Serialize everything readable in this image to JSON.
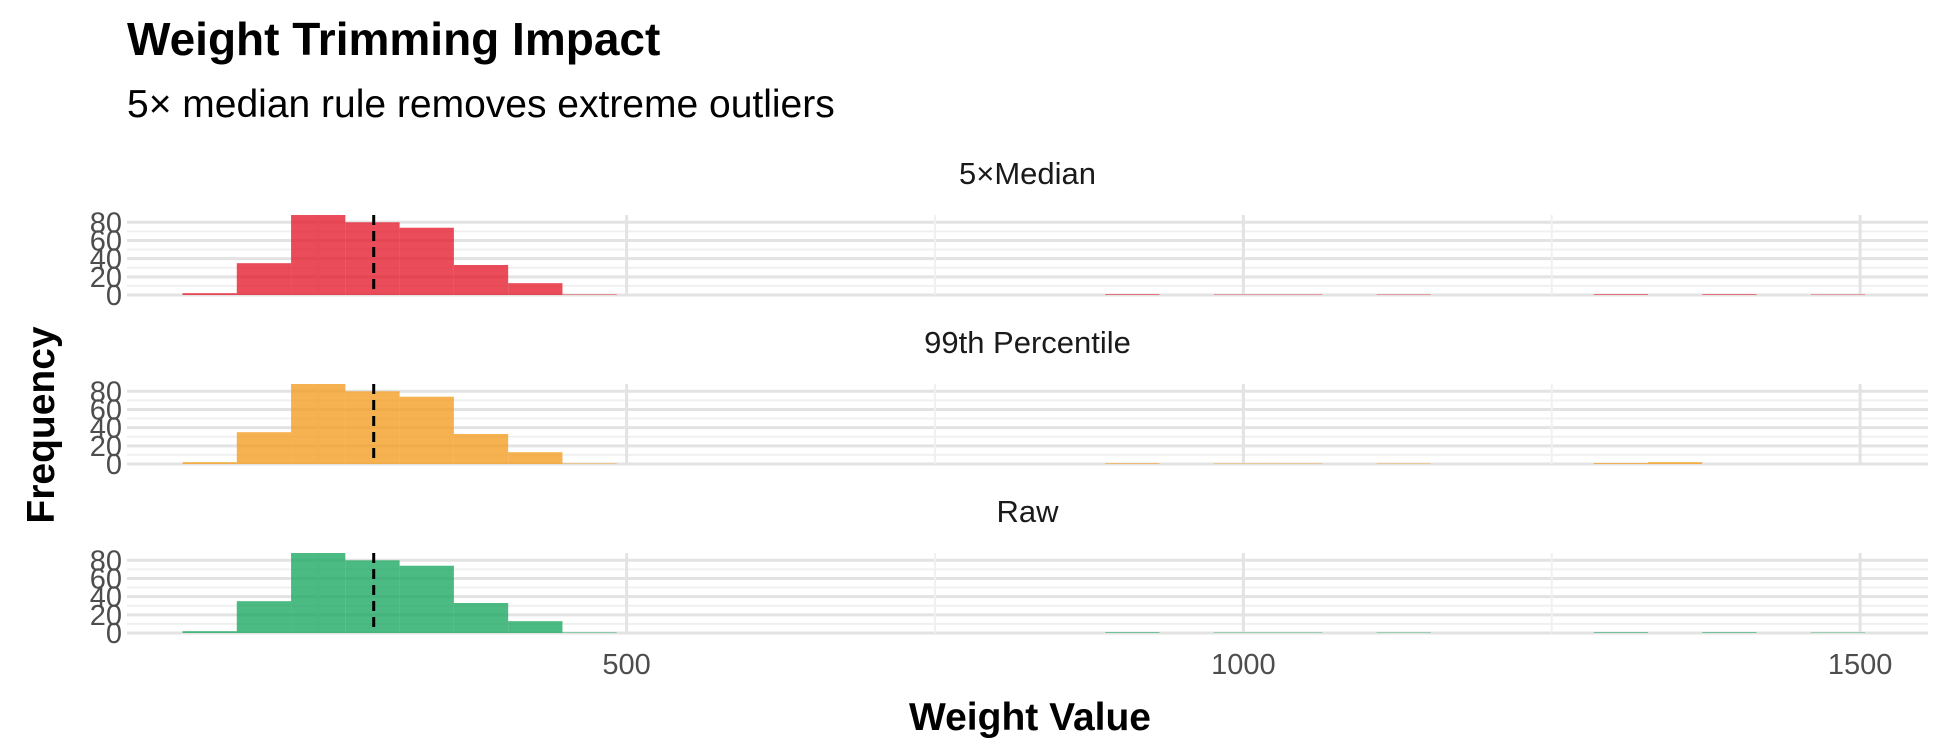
{
  "chart_data": {
    "type": "bar",
    "title": "Weight Trimming Impact",
    "subtitle": "5× median rule removes extreme outliers",
    "xlabel": "Weight Value",
    "ylabel": "Frequency",
    "xlim": [
      95,
      1555
    ],
    "ylim": [
      0,
      88
    ],
    "x_ticks": [
      "500",
      "1000",
      "1500"
    ],
    "x_tick_values": [
      500,
      1000,
      1500
    ],
    "y_ticks": [
      "0",
      "20",
      "40",
      "60",
      "80"
    ],
    "y_tick_values": [
      0,
      20,
      40,
      60,
      80
    ],
    "bin_width": 44,
    "reference_line": {
      "style": "dashed",
      "x": 295
    },
    "facets": [
      {
        "label": "5×Median",
        "color": "#e41a2c",
        "bins": [
          {
            "x": 140,
            "y": 2
          },
          {
            "x": 184,
            "y": 35
          },
          {
            "x": 228,
            "y": 88
          },
          {
            "x": 272,
            "y": 80
          },
          {
            "x": 316,
            "y": 74
          },
          {
            "x": 360,
            "y": 33
          },
          {
            "x": 404,
            "y": 13
          },
          {
            "x": 448,
            "y": 0.6
          },
          {
            "x": 888,
            "y": 0.8
          },
          {
            "x": 976,
            "y": 0.5
          },
          {
            "x": 1020,
            "y": 0.5
          },
          {
            "x": 1108,
            "y": 0.5
          },
          {
            "x": 1284,
            "y": 0.8
          },
          {
            "x": 1372,
            "y": 0.8
          },
          {
            "x": 1460,
            "y": 0.5
          }
        ]
      },
      {
        "label": "99th Percentile",
        "color": "#f39c1f",
        "bins": [
          {
            "x": 140,
            "y": 2
          },
          {
            "x": 184,
            "y": 35
          },
          {
            "x": 228,
            "y": 88
          },
          {
            "x": 272,
            "y": 80
          },
          {
            "x": 316,
            "y": 74
          },
          {
            "x": 360,
            "y": 33
          },
          {
            "x": 404,
            "y": 13
          },
          {
            "x": 448,
            "y": 0.6
          },
          {
            "x": 888,
            "y": 0.8
          },
          {
            "x": 976,
            "y": 0.5
          },
          {
            "x": 1020,
            "y": 0.5
          },
          {
            "x": 1108,
            "y": 0.5
          },
          {
            "x": 1284,
            "y": 1
          },
          {
            "x": 1328,
            "y": 2
          }
        ]
      },
      {
        "label": "Raw",
        "color": "#1aa760",
        "bins": [
          {
            "x": 140,
            "y": 2
          },
          {
            "x": 184,
            "y": 35
          },
          {
            "x": 228,
            "y": 88
          },
          {
            "x": 272,
            "y": 80
          },
          {
            "x": 316,
            "y": 74
          },
          {
            "x": 360,
            "y": 33
          },
          {
            "x": 404,
            "y": 13
          },
          {
            "x": 448,
            "y": 0.6
          },
          {
            "x": 888,
            "y": 0.8
          },
          {
            "x": 976,
            "y": 0.5
          },
          {
            "x": 1020,
            "y": 0.5
          },
          {
            "x": 1108,
            "y": 0.5
          },
          {
            "x": 1284,
            "y": 0.8
          },
          {
            "x": 1372,
            "y": 0.8
          },
          {
            "x": 1460,
            "y": 0.5
          }
        ]
      }
    ],
    "grid": true,
    "legend": "none"
  }
}
